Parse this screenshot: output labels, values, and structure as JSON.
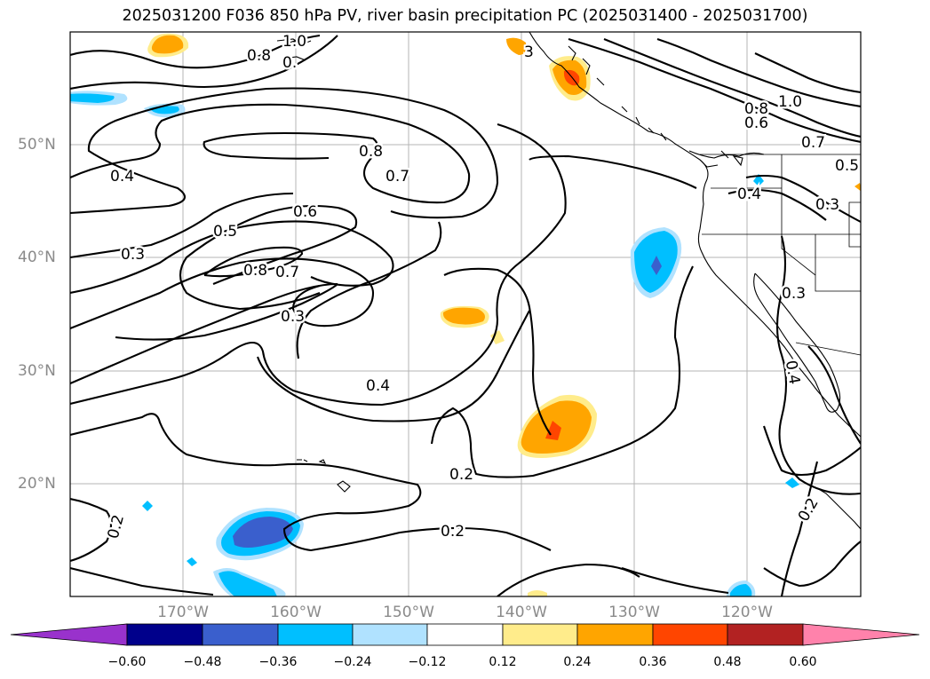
{
  "title": "2025031200 F036 850 hPa PV, river basin precipitation PC (2025031400 - 2025031700)",
  "lat_labels": [
    "50°N",
    "40°N",
    "30°N",
    "20°N"
  ],
  "lon_labels": [
    "170°W",
    "160°W",
    "150°W",
    "140°W",
    "130°W",
    "120°W"
  ],
  "colorbar": {
    "colors": [
      "#9932cc",
      "#00008b",
      "#3a5fcd",
      "#00bfff",
      "#b0e2ff",
      "#ffffff",
      "#ffec8b",
      "#ffa500",
      "#ff4500",
      "#b22222",
      "#ff82ab"
    ],
    "tick_labels": [
      "−0.60",
      "−0.48",
      "−0.36",
      "−0.24",
      "−0.12",
      "0.12",
      "0.24",
      "0.36",
      "0.48",
      "0.60"
    ]
  },
  "contour_labels": [
    "1.0",
    "0.8",
    "0.",
    "0.8",
    "0.7",
    "0.6",
    "0.5",
    "0.4",
    "0.3",
    "0.8",
    "0.7",
    "0.3",
    "0.4",
    "0.2",
    "0.2",
    "0.2",
    "1.0",
    "0.8",
    "0.6",
    "0.7",
    "0.5",
    "0.4",
    "0.3",
    "0.3",
    "0.4",
    "0.2",
    "3"
  ]
}
